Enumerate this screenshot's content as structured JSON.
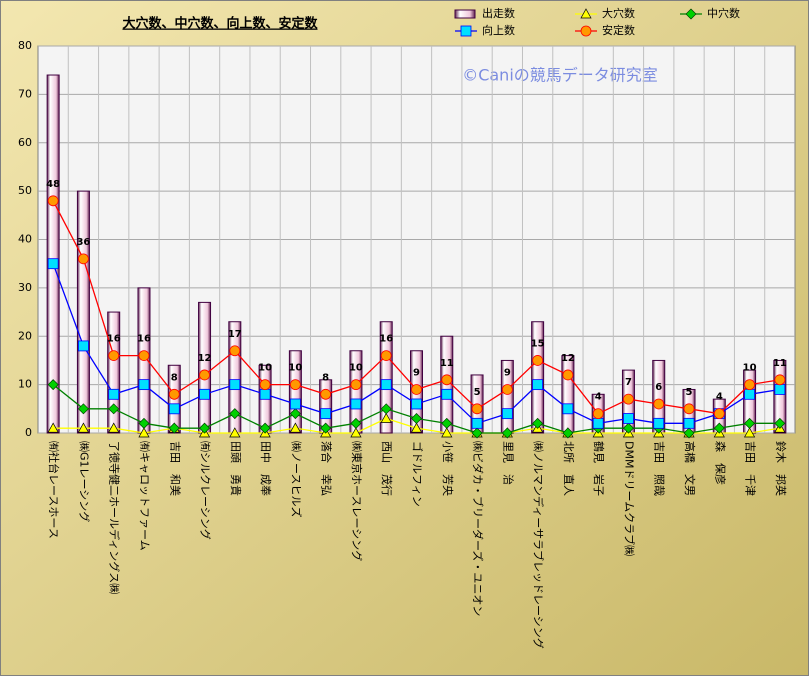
{
  "chart_data": {
    "type": "bar",
    "title": "大穴数、中穴数、向上数、安定数",
    "watermark": "©Caniの競馬データ研究室",
    "categories": [
      "㈲社台レースホース",
      "㈱G1レーシング",
      "了徳寺健二ホールディングス㈱",
      "㈲キャロットファーム",
      "吉田　和美",
      "㈲シルクレーシング",
      "田頭　勇貴",
      "田中　成奉",
      "㈱ノースヒルズ",
      "落合　幸弘",
      "㈱東京ホースレーシング",
      "西山　茂行",
      "ゴドルフィン",
      "小笹　芳央",
      "㈱ビダカ・ブリーダーズ・ユニオン",
      "里見　治",
      "㈱ノルマンディーサラブレッドレーシング",
      "北所　直人",
      "鶴見　岩子",
      "DMMドリームクラブ㈱",
      "吉田　照哉",
      "高橋　文男",
      "森　保彦",
      "吉田　千津",
      "鈴木　邦英"
    ],
    "series": [
      {
        "name": "出走数",
        "type": "bar",
        "color": "#f4d8e8",
        "values": [
          74,
          50,
          25,
          30,
          14,
          27,
          23,
          14,
          17,
          11,
          17,
          23,
          17,
          20,
          12,
          15,
          23,
          16,
          8,
          13,
          15,
          9,
          7,
          13,
          15
        ]
      },
      {
        "name": "大穴数",
        "type": "line",
        "marker": "triangle",
        "color": "#ffff00",
        "values": [
          1,
          1,
          1,
          0,
          1,
          0,
          0,
          0,
          1,
          0,
          0,
          3,
          1,
          0,
          0,
          0,
          1,
          0,
          0,
          0,
          0,
          0,
          0,
          0,
          1
        ]
      },
      {
        "name": "中穴数",
        "type": "line",
        "marker": "diamond",
        "color": "#008000",
        "values": [
          10,
          5,
          5,
          2,
          1,
          1,
          4,
          1,
          4,
          1,
          2,
          5,
          3,
          2,
          0,
          0,
          2,
          0,
          1,
          1,
          1,
          0,
          1,
          2,
          2
        ]
      },
      {
        "name": "向上数",
        "type": "line",
        "marker": "square",
        "color": "#0000ff",
        "values": [
          35,
          18,
          8,
          10,
          5,
          8,
          10,
          8,
          6,
          4,
          6,
          10,
          6,
          8,
          2,
          4,
          10,
          5,
          2,
          3,
          2,
          2,
          4,
          8,
          9
        ]
      },
      {
        "name": "安定数",
        "type": "line",
        "marker": "circle",
        "color": "#ff0000",
        "data_labels": true,
        "values": [
          48,
          36,
          16,
          16,
          8,
          12,
          17,
          10,
          10,
          8,
          10,
          16,
          9,
          11,
          5,
          9,
          15,
          12,
          4,
          7,
          6,
          5,
          4,
          10,
          11
        ]
      }
    ],
    "ylim": [
      0,
      80
    ],
    "yticks": [
      0,
      10,
      20,
      30,
      40,
      50,
      60,
      70,
      80
    ],
    "grid": true
  }
}
